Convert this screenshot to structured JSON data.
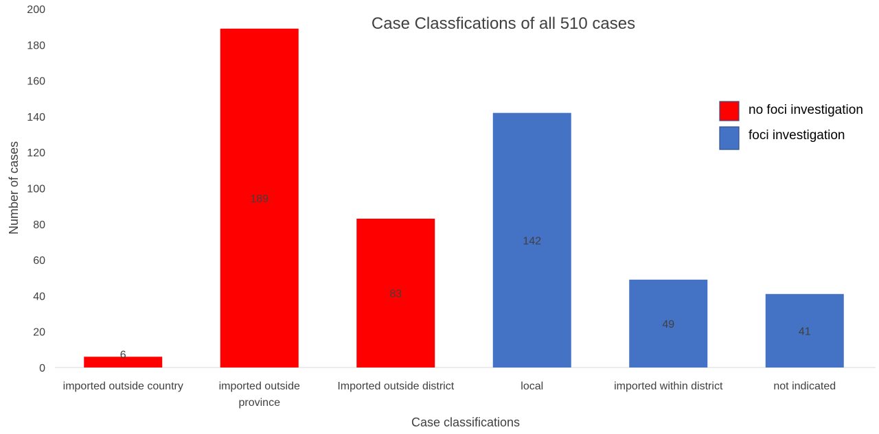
{
  "chart_data": {
    "type": "bar",
    "title": "Case Classfications of all 510 cases",
    "xlabel": "Case classifications",
    "ylabel": "Number of cases",
    "ylim": [
      0,
      200
    ],
    "yticks": [
      0,
      20,
      40,
      60,
      80,
      100,
      120,
      140,
      160,
      180,
      200
    ],
    "grid": false,
    "legend_position": "right",
    "categories": [
      [
        "imported outside country"
      ],
      [
        "imported outside",
        "province"
      ],
      [
        "Imported outside district"
      ],
      [
        "local"
      ],
      [
        "imported within district"
      ],
      [
        "not indicated"
      ]
    ],
    "values": [
      6,
      189,
      83,
      142,
      49,
      41
    ],
    "bar_series": [
      0,
      0,
      0,
      1,
      1,
      1
    ],
    "series": [
      {
        "name": "no foci investigation",
        "color": "#ff0000"
      },
      {
        "name": "foci investigation",
        "color": "#4472c4"
      }
    ],
    "data_labels": [
      "6",
      "189",
      "83",
      "142",
      "49",
      "41"
    ]
  }
}
